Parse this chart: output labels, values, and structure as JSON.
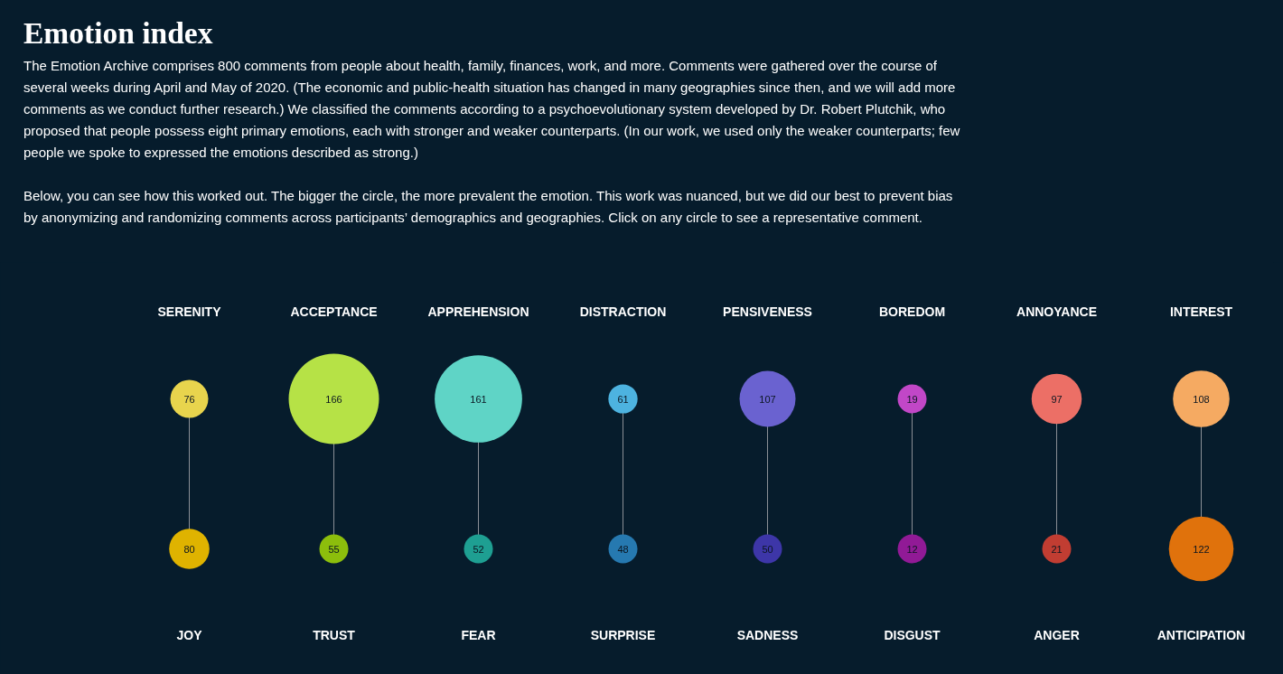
{
  "chart_data": {
    "type": "other",
    "title": "Emotion index",
    "subtitle": "The Emotion Archive comprises 800 comments from people about health, family, finances, work, and more. Comments were gathered over the course of several weeks during April and May of 2020. (The economic and public-health situation has changed in many geographies since then, and we will add more comments as we conduct further research.) We classified the comments according to a psychoevolutionary system developed by Dr. Robert Plutchik, who proposed that people possess eight primary emotions, each with stronger and weaker counterparts. (In our work, we used only the weaker counterparts; few people we spoke to expressed the emotions described as strong.)\n\nBelow, you can see how this worked out. The bigger the circle, the more prevalent the emotion. This work was nuanced, but we did our best to prevent bias by anonymizing and randomizing comments across participants’ demographics and geographies. Click on any circle to see a representative comment.",
    "categories": [
      "JOY",
      "TRUST",
      "FEAR",
      "SURPRISE",
      "SADNESS",
      "DISGUST",
      "ANGER",
      "ANTICIPATION"
    ],
    "annotations": [
      {
        "text": "SERENITY",
        "x": "JOY"
      },
      {
        "text": "ACCEPTANCE",
        "x": "TRUST"
      },
      {
        "text": "APPREHENSION",
        "x": "FEAR"
      },
      {
        "text": "DISTRACTION",
        "x": "SURPRISE"
      },
      {
        "text": "PENSIVENESS",
        "x": "SADNESS"
      },
      {
        "text": "BOREDOM",
        "x": "DISGUST"
      },
      {
        "text": "ANNOYANCE",
        "x": "ANGER"
      },
      {
        "text": "INTEREST",
        "x": "ANTICIPATION"
      }
    ],
    "data_labels": true,
    "series": [
      {
        "values": [
          76,
          166,
          161,
          61,
          107,
          19,
          97,
          108
        ],
        "colors": [
          "#e8d44d",
          "#b6e246",
          "#5fd4c6",
          "#4db3e0",
          "#6a62d0",
          "#c147c7",
          "#ec6f66",
          "#f5aa62"
        ]
      },
      {
        "values": [
          80,
          55,
          52,
          48,
          50,
          12,
          21,
          122
        ],
        "colors": [
          "#dfb300",
          "#8cbe0c",
          "#1e9f92",
          "#2679b0",
          "#3d36a8",
          "#911a96",
          "#c13d32",
          "#e0720c"
        ]
      }
    ]
  }
}
